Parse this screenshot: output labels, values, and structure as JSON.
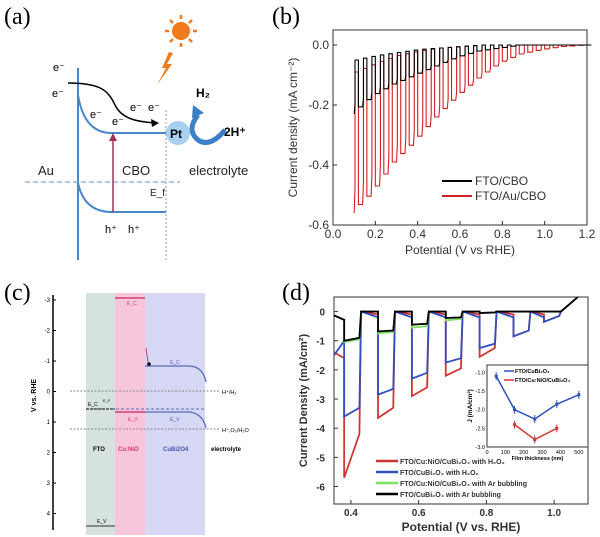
{
  "panel_labels": [
    "(a)",
    "(b)",
    "(c)",
    "(d)"
  ],
  "panel_a": {
    "electron": "e⁻",
    "hole": "h⁺",
    "pt": "Pt",
    "h2": "H₂",
    "h_plus": "2H⁺",
    "au": "Au",
    "cbo": "CBO",
    "electrolyte": "electrolyte",
    "ef": "E_f",
    "sun_color": "#f07a1e",
    "band_color": "#4a86c8"
  },
  "panel_c": {
    "y_label": "V vs. RHE",
    "y_ticks": [
      "-3",
      "-2",
      "-1",
      "0",
      "1",
      "2",
      "3",
      "4"
    ],
    "regions": [
      "FTO",
      "Cu:NiO",
      "CuBi2O4",
      "electrolyte"
    ],
    "ec": "E_C",
    "ev": "E_V",
    "e_fermi": "E_F",
    "h_h2": "H⁺/H₂",
    "h_o2": "H⁺,O₂/H₂O",
    "colors": {
      "fto": "#d5e2dd",
      "nio": "#f7c6dc",
      "cbo": "#d6d8f5",
      "nio_text": "#e0306a",
      "cbo_text": "#4a55b0"
    }
  },
  "chart_data": [
    {
      "id": "b",
      "type": "line",
      "title": "",
      "xlabel": "Potential (V vs RHE)",
      "ylabel": "Current density (mA cm⁻²)",
      "xlim": [
        0.0,
        1.2
      ],
      "ylim": [
        -0.6,
        0.05
      ],
      "x_ticks": [
        "0.0",
        "0.2",
        "0.4",
        "0.6",
        "0.8",
        "1.0",
        "1.2"
      ],
      "y_ticks": [
        "0.0",
        "-0.2",
        "-0.4",
        "-0.6"
      ],
      "chop_period_V": 0.04,
      "x": [
        0.1,
        0.2,
        0.3,
        0.4,
        0.5,
        0.6,
        0.7,
        0.8,
        0.9,
        1.0,
        1.1,
        1.2
      ],
      "series": [
        {
          "name": "FTO/CBO",
          "color": "#000000",
          "light": [
            -0.23,
            -0.17,
            -0.13,
            -0.1,
            -0.07,
            -0.04,
            -0.02,
            -0.01,
            0,
            0,
            0,
            0
          ],
          "dark": [
            -0.05,
            -0.035,
            -0.025,
            -0.015,
            -0.01,
            -0.005,
            0,
            0,
            0,
            0,
            0,
            0
          ]
        },
        {
          "name": "FTO/Au/CBO",
          "color": "#d42020",
          "light": [
            -0.56,
            -0.49,
            -0.39,
            -0.32,
            -0.24,
            -0.17,
            -0.11,
            -0.06,
            -0.03,
            -0.015,
            -0.005,
            0
          ],
          "dark": [
            -0.09,
            -0.06,
            -0.035,
            -0.02,
            -0.01,
            -0.005,
            0,
            0,
            0,
            0,
            0,
            0
          ]
        }
      ],
      "legend": "lower-right"
    },
    {
      "id": "d",
      "type": "line",
      "title": "",
      "xlabel": "Potential (V vs. RHE)",
      "ylabel": "Current Density (mA/cm²)",
      "xlim": [
        0.35,
        1.1
      ],
      "ylim": [
        -6.6,
        0.5
      ],
      "x_ticks": [
        "0.4",
        "0.6",
        "0.8",
        "1.0"
      ],
      "x_tick_values": [
        0.4,
        0.6,
        0.8,
        1.0
      ],
      "y_ticks": [
        "0",
        "-1",
        "-2",
        "-3",
        "-4",
        "-5",
        "-6"
      ],
      "chop_on_starts": [
        0.38,
        0.48,
        0.58,
        0.68,
        0.78,
        0.88,
        0.97
      ],
      "chop_on_width_V": 0.045,
      "series": [
        {
          "name": "FTO/Cu:NiO/CuBi₂O₄ with H₂O₂",
          "color": "#d03535",
          "light_start": [
            -5.7,
            -3.65,
            -2.9,
            -2.2,
            -1.55,
            -0.85,
            -0.35
          ],
          "light_end": [
            -4.2,
            -3.3,
            -2.6,
            -1.95,
            -1.25,
            -0.65,
            -0.15
          ],
          "dark": -0.1
        },
        {
          "name": "FTO/CuBi₂O₄ with H₂O₂",
          "color": "#3050c0",
          "light_start": [
            -3.6,
            -2.85,
            -2.3,
            -1.75,
            -1.25,
            -0.85,
            -0.35
          ],
          "light_end": [
            -3.3,
            -2.65,
            -2.1,
            -1.6,
            -1.1,
            -0.65,
            -0.15
          ],
          "dark": -0.2
        },
        {
          "name": "FTO/Cu:NiO/CuBi₂O₄ with Ar bubbling",
          "color": "#7ee060",
          "light_start": [
            -1.05,
            -0.75,
            -0.55,
            -0.3,
            -0.05,
            0,
            0
          ],
          "light_end": [
            -0.95,
            -0.7,
            -0.5,
            -0.25,
            -0.03,
            0,
            0
          ],
          "dark": 0
        },
        {
          "name": "FTO/CuBi₂O₄ with Ar bubbling",
          "color": "#000000",
          "light_start": [
            -1.0,
            -0.68,
            -0.45,
            -0.22,
            -0.05,
            0,
            0
          ],
          "light_end": [
            -0.9,
            -0.65,
            -0.42,
            -0.2,
            -0.03,
            0,
            0
          ],
          "dark": 0
        }
      ],
      "legend": "lower-left",
      "inset": {
        "type": "line",
        "xlabel": "Film thickness (nm)",
        "ylabel": "J (mA/cm²)",
        "xlim": [
          0,
          550
        ],
        "ylim": [
          -3.0,
          -0.8
        ],
        "x_ticks": [
          "0",
          "100",
          "200",
          "300",
          "400",
          "500"
        ],
        "y_ticks": [
          "-1.0",
          "-1.5",
          "-2.0",
          "-2.5",
          "-3.0"
        ],
        "series": [
          {
            "name": "FTO/CuBi₂O₄",
            "color": "#3050c0",
            "x": [
              50,
              150,
              260,
              380,
              500
            ],
            "y": [
              -1.1,
              -2.0,
              -2.25,
              -1.85,
              -1.6
            ]
          },
          {
            "name": "FTO/Cu:NiO/CuBi₂O₄",
            "color": "#d03535",
            "x": [
              150,
              260,
              380
            ],
            "y": [
              -2.4,
              -2.8,
              -2.5
            ]
          }
        ]
      }
    }
  ]
}
